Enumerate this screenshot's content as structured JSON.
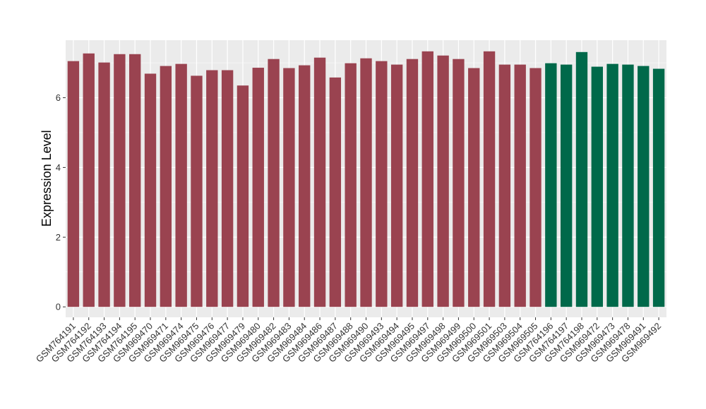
{
  "chart_data": {
    "type": "bar",
    "ylabel": "Expression Level",
    "ylim": [
      -0.3,
      7.65
    ],
    "yticks": [
      0,
      2,
      4,
      6
    ],
    "grid": true,
    "legend": "none",
    "colors": {
      "group1": "#9a4350",
      "group2": "#00694a",
      "panel": "#ebebeb",
      "grid": "#ffffff"
    },
    "categories": [
      "GSM764191",
      "GSM764192",
      "GSM764193",
      "GSM764194",
      "GSM764195",
      "GSM969470",
      "GSM969471",
      "GSM969474",
      "GSM969475",
      "GSM969476",
      "GSM969477",
      "GSM969479",
      "GSM969480",
      "GSM969482",
      "GSM969483",
      "GSM969484",
      "GSM969486",
      "GSM969487",
      "GSM969488",
      "GSM969490",
      "GSM969493",
      "GSM969494",
      "GSM969495",
      "GSM969497",
      "GSM969498",
      "GSM969499",
      "GSM969500",
      "GSM969501",
      "GSM969503",
      "GSM969504",
      "GSM969505",
      "GSM764196",
      "GSM764197",
      "GSM764198",
      "GSM969472",
      "GSM969473",
      "GSM969478",
      "GSM969491",
      "GSM969492"
    ],
    "values": [
      7.05,
      7.27,
      7.01,
      7.25,
      7.25,
      6.69,
      6.91,
      6.97,
      6.63,
      6.79,
      6.79,
      6.35,
      6.86,
      7.11,
      6.85,
      6.93,
      7.15,
      6.58,
      6.99,
      7.13,
      7.05,
      6.95,
      7.11,
      7.33,
      7.21,
      7.11,
      6.85,
      7.33,
      6.95,
      6.95,
      6.85,
      6.99,
      6.95,
      7.31,
      6.89,
      6.97,
      6.95,
      6.91,
      6.83
    ],
    "groups": [
      1,
      1,
      1,
      1,
      1,
      1,
      1,
      1,
      1,
      1,
      1,
      1,
      1,
      1,
      1,
      1,
      1,
      1,
      1,
      1,
      1,
      1,
      1,
      1,
      1,
      1,
      1,
      1,
      1,
      1,
      1,
      2,
      2,
      2,
      2,
      2,
      2,
      2,
      2
    ]
  }
}
